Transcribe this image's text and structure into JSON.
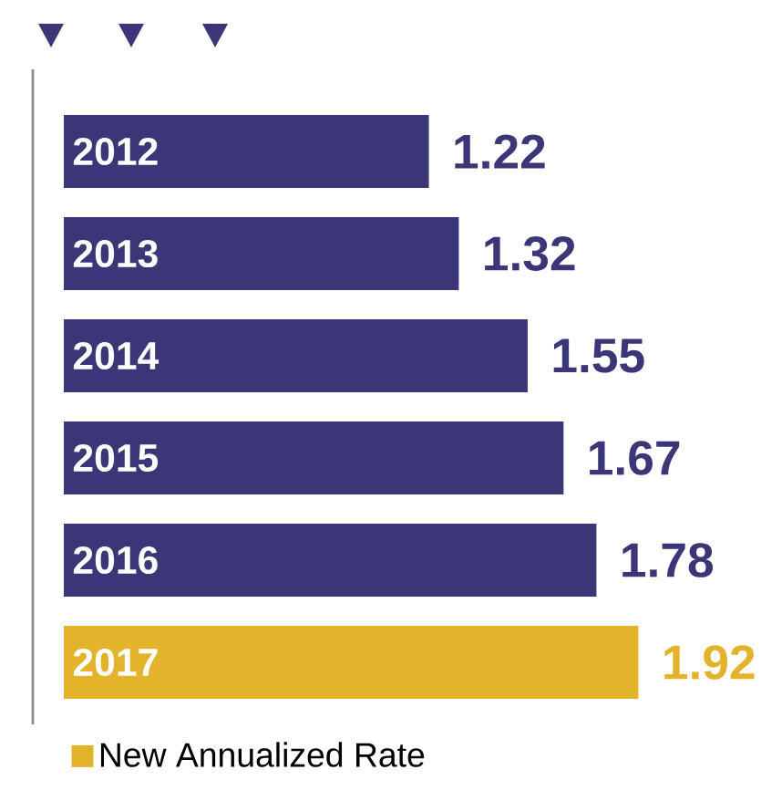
{
  "chart_data": {
    "type": "bar",
    "orientation": "horizontal",
    "categories": [
      "2012",
      "2013",
      "2014",
      "2015",
      "2016",
      "2017"
    ],
    "series": [
      {
        "color": "#3b3678",
        "values": [
          1.22,
          1.32,
          1.55,
          1.67,
          1.78,
          null
        ]
      },
      {
        "name": "New Annualized Rate",
        "color": "#e3b42b",
        "values": [
          null,
          null,
          null,
          null,
          null,
          1.92
        ]
      }
    ],
    "data_labels": true,
    "tick_labels": false,
    "legend": "bottom left"
  }
}
